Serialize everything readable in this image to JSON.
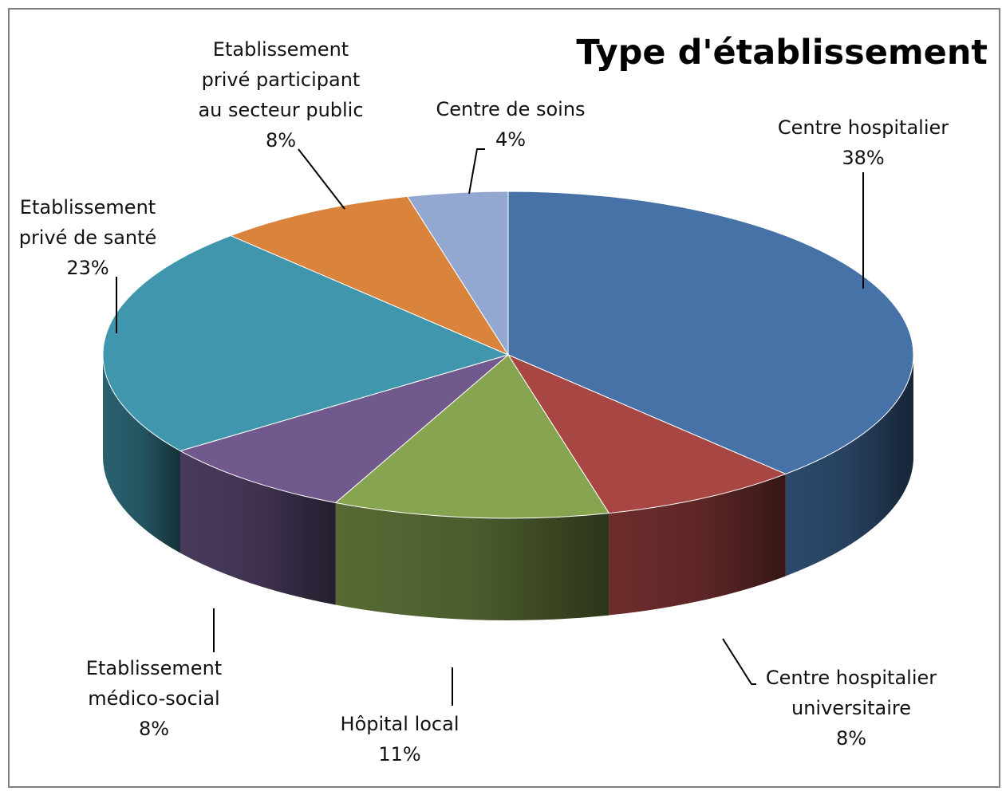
{
  "chart_data": {
    "type": "pie",
    "title": "Type d'établissement",
    "style": "3d-pie",
    "slices": [
      {
        "label_lines": [
          "Centre hospitalier"
        ],
        "percent_label": "38%",
        "value": 38,
        "color": "#4672A8"
      },
      {
        "label_lines": [
          "Centre hospitalier",
          "universitaire"
        ],
        "percent_label": "8%",
        "value": 8,
        "color": "#A84644"
      },
      {
        "label_lines": [
          "Hôpital local"
        ],
        "percent_label": "11%",
        "value": 11,
        "color": "#87A450"
      },
      {
        "label_lines": [
          "Etablissement",
          "médico-social"
        ],
        "percent_label": "8%",
        "value": 8,
        "color": "#71598D"
      },
      {
        "label_lines": [
          "Etablissement",
          "privé de santé"
        ],
        "percent_label": "23%",
        "value": 23,
        "color": "#4096AC"
      },
      {
        "label_lines": [
          "Etablissement",
          "privé participant",
          "au secteur public"
        ],
        "percent_label": "8%",
        "value": 8,
        "color": "#D9833C"
      },
      {
        "label_lines": [
          "Centre de soins"
        ],
        "percent_label": "4%",
        "value": 4,
        "color": "#93A8D1"
      }
    ]
  }
}
